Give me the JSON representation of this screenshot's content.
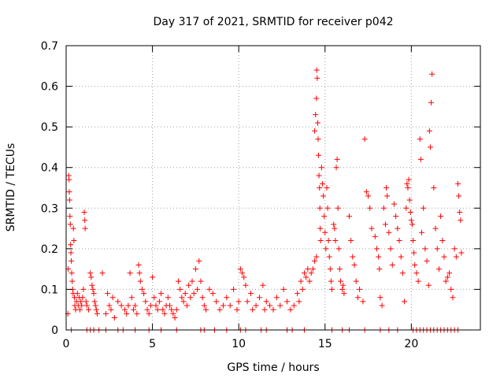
{
  "chart_data": {
    "type": "scatter",
    "title": "Day 317 of 2021, SRMTID for receiver p042",
    "xlabel": "GPS time / hours",
    "ylabel": "SRMTID / TECUs",
    "xlim": [
      0,
      24
    ],
    "ylim": [
      0,
      0.7
    ],
    "xticks": [
      0,
      5,
      10,
      15,
      20
    ],
    "xtick_labels": [
      "0",
      "5",
      "10",
      "15",
      "20"
    ],
    "yticks": [
      0,
      0.1,
      0.2,
      0.3,
      0.4,
      0.5,
      0.6,
      0.7
    ],
    "ytick_labels": [
      "0",
      "0.1",
      "0.2",
      "0.3",
      "0.4",
      "0.5",
      "0.6",
      "0.7"
    ],
    "grid": true,
    "marker": "+",
    "color": "#ff0000",
    "series": [
      {
        "name": "SRMTID",
        "points": [
          [
            0.1,
            0.04
          ],
          [
            0.12,
            0.15
          ],
          [
            0.15,
            0.38
          ],
          [
            0.17,
            0.37
          ],
          [
            0.18,
            0.34
          ],
          [
            0.2,
            0.32
          ],
          [
            0.22,
            0.28
          ],
          [
            0.24,
            0.26
          ],
          [
            0.26,
            0.21
          ],
          [
            0.28,
            0.19
          ],
          [
            0.3,
            0.17
          ],
          [
            0.32,
            0.14
          ],
          [
            0.35,
            0.12
          ],
          [
            0.38,
            0.1
          ],
          [
            0.4,
            0.09
          ],
          [
            0.42,
            0.25
          ],
          [
            0.45,
            0.22
          ],
          [
            0.48,
            0.08
          ],
          [
            0.5,
            0.06
          ],
          [
            0.55,
            0.05
          ],
          [
            0.6,
            0.07
          ],
          [
            0.65,
            0.09
          ],
          [
            0.7,
            0.06
          ],
          [
            0.75,
            0.08
          ],
          [
            0.8,
            0.05
          ],
          [
            0.85,
            0.07
          ],
          [
            0.9,
            0.06
          ],
          [
            0.95,
            0.08
          ],
          [
            1.0,
            0.1
          ],
          [
            1.05,
            0.29
          ],
          [
            1.08,
            0.27
          ],
          [
            1.1,
            0.25
          ],
          [
            1.15,
            0.07
          ],
          [
            1.2,
            0.06
          ],
          [
            1.3,
            0.05
          ],
          [
            1.4,
            0.14
          ],
          [
            1.45,
            0.13
          ],
          [
            1.5,
            0.11
          ],
          [
            1.55,
            0.1
          ],
          [
            1.6,
            0.09
          ],
          [
            1.65,
            0.07
          ],
          [
            1.7,
            0.06
          ],
          [
            1.75,
            0.05
          ],
          [
            1.8,
            0.04
          ],
          [
            2.1,
            0.14
          ],
          [
            2.3,
            0.04
          ],
          [
            2.4,
            0.09
          ],
          [
            2.5,
            0.06
          ],
          [
            2.6,
            0.05
          ],
          [
            2.7,
            0.08
          ],
          [
            2.8,
            0.03
          ],
          [
            3.0,
            0.07
          ],
          [
            3.2,
            0.06
          ],
          [
            3.4,
            0.05
          ],
          [
            3.5,
            0.04
          ],
          [
            3.6,
            0.06
          ],
          [
            3.7,
            0.14
          ],
          [
            3.8,
            0.08
          ],
          [
            3.9,
            0.05
          ],
          [
            4.0,
            0.06
          ],
          [
            4.1,
            0.04
          ],
          [
            4.2,
            0.16
          ],
          [
            4.25,
            0.14
          ],
          [
            4.3,
            0.12
          ],
          [
            4.4,
            0.1
          ],
          [
            4.5,
            0.09
          ],
          [
            4.6,
            0.07
          ],
          [
            4.7,
            0.05
          ],
          [
            4.8,
            0.04
          ],
          [
            4.9,
            0.06
          ],
          [
            5.0,
            0.13
          ],
          [
            5.1,
            0.08
          ],
          [
            5.2,
            0.06
          ],
          [
            5.3,
            0.05
          ],
          [
            5.4,
            0.07
          ],
          [
            5.5,
            0.09
          ],
          [
            5.6,
            0.05
          ],
          [
            5.7,
            0.04
          ],
          [
            5.8,
            0.06
          ],
          [
            5.9,
            0.08
          ],
          [
            6.0,
            0.06
          ],
          [
            6.1,
            0.05
          ],
          [
            6.2,
            0.04
          ],
          [
            6.3,
            0.03
          ],
          [
            6.4,
            0.05
          ],
          [
            6.5,
            0.12
          ],
          [
            6.6,
            0.1
          ],
          [
            6.7,
            0.08
          ],
          [
            6.8,
            0.07
          ],
          [
            6.9,
            0.09
          ],
          [
            7.0,
            0.06
          ],
          [
            7.1,
            0.11
          ],
          [
            7.2,
            0.08
          ],
          [
            7.3,
            0.12
          ],
          [
            7.4,
            0.09
          ],
          [
            7.5,
            0.15
          ],
          [
            7.6,
            0.1
          ],
          [
            7.7,
            0.17
          ],
          [
            7.8,
            0.12
          ],
          [
            7.9,
            0.08
          ],
          [
            8.0,
            0.06
          ],
          [
            8.1,
            0.05
          ],
          [
            8.3,
            0.1
          ],
          [
            8.5,
            0.09
          ],
          [
            8.7,
            0.07
          ],
          [
            8.9,
            0.05
          ],
          [
            9.1,
            0.06
          ],
          [
            9.3,
            0.08
          ],
          [
            9.5,
            0.06
          ],
          [
            9.7,
            0.1
          ],
          [
            9.9,
            0.05
          ],
          [
            10.0,
            0.07
          ],
          [
            10.1,
            0.15
          ],
          [
            10.2,
            0.14
          ],
          [
            10.3,
            0.13
          ],
          [
            10.4,
            0.11
          ],
          [
            10.5,
            0.07
          ],
          [
            10.7,
            0.09
          ],
          [
            10.8,
            0.05
          ],
          [
            11.0,
            0.06
          ],
          [
            11.2,
            0.08
          ],
          [
            11.4,
            0.11
          ],
          [
            11.5,
            0.05
          ],
          [
            11.6,
            0.07
          ],
          [
            11.8,
            0.06
          ],
          [
            12.0,
            0.05
          ],
          [
            12.2,
            0.08
          ],
          [
            12.4,
            0.06
          ],
          [
            12.6,
            0.1
          ],
          [
            12.8,
            0.07
          ],
          [
            13.0,
            0.05
          ],
          [
            13.2,
            0.06
          ],
          [
            13.4,
            0.09
          ],
          [
            13.5,
            0.07
          ],
          [
            13.6,
            0.12
          ],
          [
            13.7,
            0.1
          ],
          [
            13.8,
            0.14
          ],
          [
            13.9,
            0.13
          ],
          [
            14.0,
            0.15
          ],
          [
            14.1,
            0.12
          ],
          [
            14.2,
            0.14
          ],
          [
            14.3,
            0.15
          ],
          [
            14.4,
            0.17
          ],
          [
            14.5,
            0.18
          ],
          [
            14.4,
            0.49
          ],
          [
            14.45,
            0.53
          ],
          [
            14.5,
            0.57
          ],
          [
            14.52,
            0.64
          ],
          [
            14.55,
            0.62
          ],
          [
            14.58,
            0.51
          ],
          [
            14.6,
            0.47
          ],
          [
            14.62,
            0.43
          ],
          [
            14.65,
            0.38
          ],
          [
            14.68,
            0.35
          ],
          [
            14.7,
            0.3
          ],
          [
            14.72,
            0.25
          ],
          [
            14.75,
            0.22
          ],
          [
            14.8,
            0.4
          ],
          [
            14.85,
            0.36
          ],
          [
            14.9,
            0.33
          ],
          [
            14.95,
            0.28
          ],
          [
            15.0,
            0.24
          ],
          [
            15.05,
            0.2
          ],
          [
            15.1,
            0.35
          ],
          [
            15.15,
            0.3
          ],
          [
            15.2,
            0.22
          ],
          [
            15.25,
            0.18
          ],
          [
            15.3,
            0.15
          ],
          [
            15.35,
            0.12
          ],
          [
            15.4,
            0.1
          ],
          [
            15.5,
            0.26
          ],
          [
            15.55,
            0.25
          ],
          [
            15.6,
            0.22
          ],
          [
            15.65,
            0.4
          ],
          [
            15.7,
            0.42
          ],
          [
            15.75,
            0.3
          ],
          [
            15.8,
            0.2
          ],
          [
            15.85,
            0.15
          ],
          [
            15.9,
            0.12
          ],
          [
            16.0,
            0.1
          ],
          [
            16.05,
            0.11
          ],
          [
            16.1,
            0.09
          ],
          [
            16.4,
            0.28
          ],
          [
            16.5,
            0.22
          ],
          [
            16.6,
            0.18
          ],
          [
            16.7,
            0.16
          ],
          [
            16.8,
            0.12
          ],
          [
            16.9,
            0.08
          ],
          [
            17.0,
            0.1
          ],
          [
            17.2,
            0.07
          ],
          [
            17.3,
            0.47
          ],
          [
            17.4,
            0.34
          ],
          [
            17.5,
            0.33
          ],
          [
            17.6,
            0.3
          ],
          [
            17.7,
            0.25
          ],
          [
            17.9,
            0.23
          ],
          [
            18.0,
            0.2
          ],
          [
            18.1,
            0.18
          ],
          [
            18.15,
            0.15
          ],
          [
            18.2,
            0.08
          ],
          [
            18.3,
            0.06
          ],
          [
            18.4,
            0.3
          ],
          [
            18.5,
            0.26
          ],
          [
            18.55,
            0.35
          ],
          [
            18.6,
            0.33
          ],
          [
            18.7,
            0.24
          ],
          [
            18.8,
            0.2
          ],
          [
            18.9,
            0.16
          ],
          [
            19.0,
            0.31
          ],
          [
            19.1,
            0.28
          ],
          [
            19.2,
            0.25
          ],
          [
            19.3,
            0.22
          ],
          [
            19.4,
            0.18
          ],
          [
            19.5,
            0.14
          ],
          [
            19.6,
            0.07
          ],
          [
            19.7,
            0.3
          ],
          [
            19.75,
            0.36
          ],
          [
            19.8,
            0.35
          ],
          [
            19.85,
            0.37
          ],
          [
            19.9,
            0.32
          ],
          [
            19.95,
            0.29
          ],
          [
            20.0,
            0.27
          ],
          [
            20.05,
            0.26
          ],
          [
            20.1,
            0.22
          ],
          [
            20.15,
            0.19
          ],
          [
            20.2,
            0.16
          ],
          [
            20.3,
            0.14
          ],
          [
            20.4,
            0.12
          ],
          [
            20.5,
            0.47
          ],
          [
            20.55,
            0.42
          ],
          [
            20.6,
            0.24
          ],
          [
            20.7,
            0.3
          ],
          [
            20.8,
            0.2
          ],
          [
            20.9,
            0.17
          ],
          [
            21.0,
            0.11
          ],
          [
            21.05,
            0.49
          ],
          [
            21.1,
            0.45
          ],
          [
            21.15,
            0.56
          ],
          [
            21.2,
            0.63
          ],
          [
            21.3,
            0.35
          ],
          [
            21.4,
            0.25
          ],
          [
            21.5,
            0.2
          ],
          [
            21.6,
            0.15
          ],
          [
            21.7,
            0.28
          ],
          [
            21.8,
            0.22
          ],
          [
            21.9,
            0.18
          ],
          [
            22.0,
            0.12
          ],
          [
            22.1,
            0.13
          ],
          [
            22.2,
            0.14
          ],
          [
            22.3,
            0.1
          ],
          [
            22.4,
            0.08
          ],
          [
            22.5,
            0.2
          ],
          [
            22.6,
            0.18
          ],
          [
            22.7,
            0.36
          ],
          [
            22.75,
            0.33
          ],
          [
            22.8,
            0.29
          ],
          [
            22.85,
            0.27
          ],
          [
            22.9,
            0.19
          ],
          [
            0.3,
            0.0
          ],
          [
            1.2,
            0.0
          ],
          [
            1.4,
            0.0
          ],
          [
            1.6,
            0.0
          ],
          [
            1.9,
            0.0
          ],
          [
            2.3,
            0.0
          ],
          [
            3.0,
            0.0
          ],
          [
            3.3,
            0.0
          ],
          [
            4.0,
            0.0
          ],
          [
            4.8,
            0.0
          ],
          [
            5.5,
            0.0
          ],
          [
            6.4,
            0.0
          ],
          [
            7.8,
            0.0
          ],
          [
            8.0,
            0.0
          ],
          [
            8.6,
            0.0
          ],
          [
            9.3,
            0.0
          ],
          [
            10.1,
            0.0
          ],
          [
            10.4,
            0.0
          ],
          [
            11.3,
            0.0
          ],
          [
            11.6,
            0.0
          ],
          [
            12.8,
            0.0
          ],
          [
            13.1,
            0.0
          ],
          [
            13.8,
            0.0
          ],
          [
            15.4,
            0.0
          ],
          [
            16.0,
            0.0
          ],
          [
            16.4,
            0.0
          ],
          [
            17.3,
            0.0
          ],
          [
            18.2,
            0.0
          ],
          [
            18.7,
            0.0
          ],
          [
            19.2,
            0.0
          ],
          [
            20.1,
            0.0
          ],
          [
            20.3,
            0.0
          ],
          [
            20.5,
            0.0
          ],
          [
            20.7,
            0.0
          ],
          [
            20.9,
            0.0
          ],
          [
            21.1,
            0.0
          ],
          [
            21.3,
            0.0
          ],
          [
            21.5,
            0.0
          ],
          [
            21.7,
            0.0
          ],
          [
            21.9,
            0.0
          ],
          [
            22.1,
            0.0
          ],
          [
            22.3,
            0.0
          ],
          [
            22.5,
            0.0
          ],
          [
            22.7,
            0.0
          ]
        ]
      }
    ]
  }
}
